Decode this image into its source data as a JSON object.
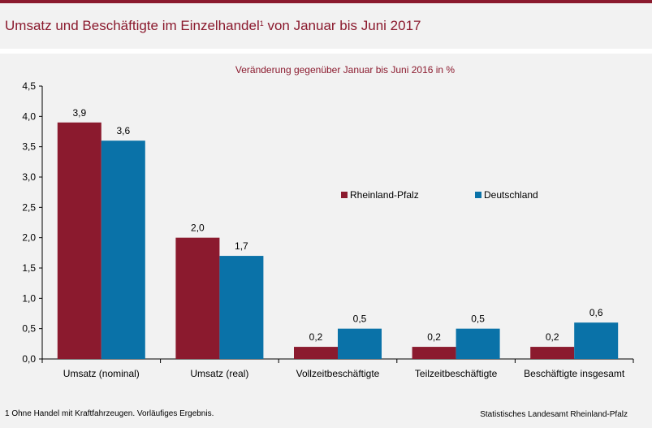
{
  "header": {
    "title": "Umsatz und Beschäftigte im Einzelhandel",
    "title_footnote_mark": "1",
    "title_suffix": " von Januar bis Juni 2017"
  },
  "chart_data": {
    "type": "bar",
    "subtitle": "Veränderung gegenüber Januar bis Juni 2016 in %",
    "categories": [
      "Umsatz (nominal)",
      "Umsatz (real)",
      "Vollzeitbeschäftigte",
      "Teilzeitbeschäftigte",
      "Beschäftigte insgesamt"
    ],
    "series": [
      {
        "name": "Rheinland-Pfalz",
        "values": [
          3.9,
          2.0,
          0.2,
          0.2,
          0.2
        ],
        "labels": [
          "3,9",
          "2,0",
          "0,2",
          "0,2",
          "0,2"
        ],
        "color": "#8b1a2e"
      },
      {
        "name": "Deutschland",
        "values": [
          3.6,
          1.7,
          0.5,
          0.5,
          0.6
        ],
        "labels": [
          "3,6",
          "1,7",
          "0,5",
          "0,5",
          "0,6"
        ],
        "color": "#0a72a8"
      }
    ],
    "ylim": [
      0,
      4.5
    ],
    "yticks": [
      0,
      0.5,
      1.0,
      1.5,
      2.0,
      2.5,
      3.0,
      3.5,
      4.0,
      4.5
    ],
    "ytick_labels": [
      "0,0",
      "0,5",
      "1,0",
      "1,5",
      "2,0",
      "2,5",
      "3,0",
      "3,5",
      "4,0",
      "4,5"
    ],
    "grid": false,
    "legend": "center-right"
  },
  "footnote": "1 Ohne Handel mit Kraftfahrzeugen. Vorläufiges Ergebnis.",
  "source": "Statistisches Landesamt Rheinland-Pfalz"
}
